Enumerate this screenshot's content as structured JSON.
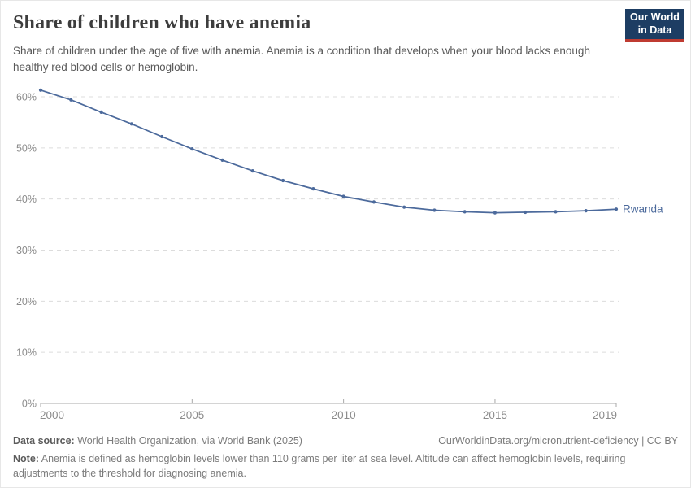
{
  "header": {
    "title": "Share of children who have anemia",
    "subtitle": "Share of children under the age of five with anemia. Anemia is a condition that develops when your blood lacks enough healthy red blood cells or hemoglobin."
  },
  "logo": {
    "line1": "Our World",
    "line2": "in Data",
    "bg_color": "#1d3d63",
    "accent_color": "#bf3b31"
  },
  "footer": {
    "datasource_label": "Data source:",
    "datasource_text": " World Health Organization, via World Bank (2025)",
    "link": "OurWorldinData.org/micronutrient-deficiency | CC BY",
    "note_label": "Note:",
    "note_text": " Anemia is defined as hemoglobin levels lower than 110 grams per liter at sea level. Altitude can affect hemoglobin levels, requiring adjustments to the threshold for diagnosing anemia."
  },
  "chart_data": {
    "type": "line",
    "title": "Share of children who have anemia",
    "x": [
      2000,
      2001,
      2002,
      2003,
      2004,
      2005,
      2006,
      2007,
      2008,
      2009,
      2010,
      2011,
      2012,
      2013,
      2014,
      2015,
      2016,
      2017,
      2018,
      2019
    ],
    "series": [
      {
        "name": "Rwanda",
        "color": "#4C6A9C",
        "values": [
          61.3,
          59.4,
          57.0,
          54.7,
          52.2,
          49.8,
          47.6,
          45.5,
          43.6,
          42.0,
          40.5,
          39.4,
          38.4,
          37.8,
          37.5,
          37.3,
          37.4,
          37.5,
          37.7,
          38.0
        ]
      }
    ],
    "entity_label": "Rwanda",
    "xlabel": "",
    "ylabel": "",
    "ylim": [
      0,
      62
    ],
    "yticks": [
      0,
      10,
      20,
      30,
      40,
      50,
      60
    ],
    "ytick_suffix": "%",
    "xticks": [
      2000,
      2005,
      2010,
      2015,
      2019
    ],
    "grid": "horizontal-dashed",
    "legend_position": "end-of-line",
    "colors": {
      "grid": "#dcdcdc",
      "axis": "#a8a8a8",
      "tick_label": "#8b8b8b"
    }
  }
}
